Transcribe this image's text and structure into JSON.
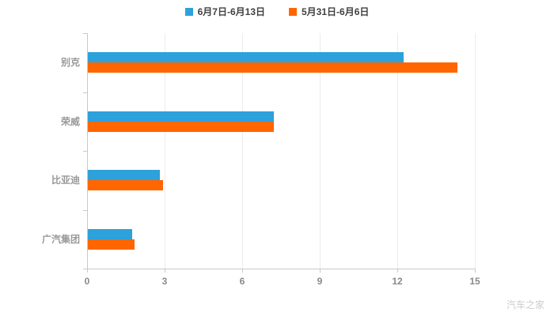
{
  "watermark": "汽车之家",
  "chart_data": {
    "type": "bar",
    "orientation": "horizontal",
    "title": "",
    "xlabel": "",
    "ylabel": "",
    "categories": [
      "别克",
      "荣威",
      "比亚迪",
      "广汽集团"
    ],
    "series": [
      {
        "name": "6月7日-6月13日",
        "color": "#2DA1DB",
        "values": [
          12.2,
          7.2,
          2.8,
          1.7
        ]
      },
      {
        "name": "5月31日-6月6日",
        "color": "#FF6600",
        "values": [
          14.3,
          7.2,
          2.9,
          1.8
        ]
      }
    ],
    "xlim": [
      0,
      15
    ],
    "xticks": [
      0,
      3,
      6,
      9,
      12,
      15
    ],
    "grid": true,
    "legend_position": "top-center"
  }
}
